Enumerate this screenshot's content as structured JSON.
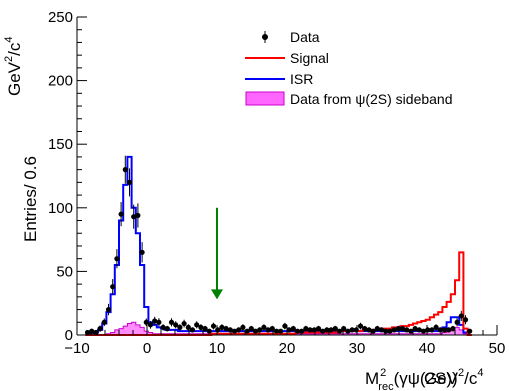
{
  "chart_data": {
    "type": "histogram",
    "xlabel": {
      "main": "M",
      "sup": "2",
      "sub": "rec",
      "rest": "(γψ(2S))",
      "unit_prefix": "GeV",
      "unit_sup1": "2",
      "unit_mid": "/c",
      "unit_sup2": "4"
    },
    "ylabel": {
      "main": "Entries/ 0.6",
      "unit_prefix": "GeV",
      "unit_sup1": "2",
      "unit_mid": "/c",
      "unit_sup2": "4"
    },
    "xlim": [
      -10,
      50
    ],
    "ylim": [
      0,
      250
    ],
    "xticks": [
      -10,
      0,
      10,
      20,
      30,
      40,
      50
    ],
    "yticks": [
      0,
      50,
      100,
      150,
      200,
      250
    ],
    "bin_width": 0.6,
    "legend": {
      "position": "top-right",
      "entries": [
        {
          "label": "Data",
          "style": "marker",
          "color": "#000000"
        },
        {
          "label": "Signal",
          "style": "line",
          "color": "#ff0000"
        },
        {
          "label": "ISR",
          "style": "line",
          "color": "#0000ff"
        },
        {
          "label": "Data from ψ(2S) sideband",
          "style": "fill",
          "color": "#ff00ff"
        }
      ]
    },
    "arrow": {
      "x": 10,
      "y_top": 100,
      "y_bottom": 28,
      "color": "#008000"
    },
    "series": {
      "data": {
        "x": [
          -8.5,
          -7.9,
          -7.3,
          -6.7,
          -6.1,
          -5.5,
          -4.9,
          -4.3,
          -3.7,
          -3.1,
          -2.5,
          -1.9,
          -1.3,
          -0.7,
          -0.1,
          0.5,
          1.1,
          1.7,
          2.3,
          2.9,
          3.5,
          4.1,
          4.7,
          5.3,
          5.9,
          6.5,
          7.1,
          7.7,
          8.3,
          8.9,
          9.5,
          10.1,
          10.7,
          11.3,
          11.9,
          12.5,
          13.1,
          13.7,
          14.3,
          14.9,
          15.5,
          16.1,
          16.7,
          17.3,
          17.9,
          18.5,
          19.1,
          19.7,
          20.3,
          20.9,
          21.5,
          22.1,
          22.7,
          23.3,
          23.9,
          24.5,
          25.1,
          25.7,
          26.3,
          26.9,
          27.5,
          28.1,
          28.7,
          29.3,
          29.9,
          30.5,
          31.1,
          31.7,
          32.3,
          32.9,
          33.5,
          34.1,
          34.7,
          35.3,
          35.9,
          36.5,
          37.1,
          37.7,
          38.3,
          38.9,
          39.5,
          40.1,
          40.7,
          41.3,
          41.9,
          42.5,
          43.1,
          43.7,
          44.3,
          44.9,
          45.5,
          46.1
        ],
        "y": [
          2,
          3,
          2,
          5,
          10,
          20,
          38,
          60,
          95,
          130,
          120,
          93,
          94,
          65,
          10,
          8,
          11,
          10,
          6,
          5,
          10,
          8,
          6,
          9,
          6,
          4,
          8,
          6,
          5,
          3,
          7,
          4,
          6,
          5,
          4,
          3,
          4,
          6,
          3,
          5,
          3,
          4,
          6,
          4,
          5,
          3,
          3,
          7,
          4,
          5,
          3,
          3,
          5,
          4,
          4,
          5,
          3,
          4,
          4,
          5,
          3,
          5,
          3,
          4,
          4,
          7,
          5,
          4,
          3,
          5,
          4,
          3,
          3,
          4,
          5,
          5,
          4,
          3,
          5,
          4,
          3,
          4,
          4,
          6,
          4,
          4,
          4,
          5,
          10,
          15,
          12,
          3
        ],
        "err": [
          1.5,
          2,
          1.5,
          2.5,
          3,
          4.5,
          6,
          7.5,
          9.5,
          11,
          11,
          9.5,
          9.5,
          8,
          3,
          3,
          3.3,
          3.2,
          2.5,
          2.2,
          3.2,
          2.8,
          2.5,
          3,
          2.5,
          2,
          2.8,
          2.5,
          2.2,
          1.7,
          2.6,
          2,
          2.5,
          2.2,
          2,
          1.7,
          2,
          2.5,
          1.7,
          2.2,
          1.7,
          2,
          2.5,
          2,
          2.2,
          1.7,
          1.7,
          2.6,
          2,
          2.2,
          1.7,
          1.7,
          2.2,
          2,
          2,
          2.2,
          1.7,
          2,
          2,
          2.2,
          1.7,
          2.2,
          1.7,
          2,
          2,
          2.6,
          2.2,
          2,
          1.7,
          2.2,
          2,
          1.7,
          1.7,
          2,
          2.2,
          2.2,
          2,
          1.7,
          2.2,
          2,
          1.7,
          2,
          2,
          2.5,
          2,
          2,
          2,
          2.2,
          3.2,
          4,
          3.5,
          1.7
        ]
      },
      "isr": {
        "edges_start": -8.8,
        "values": [
          0,
          1,
          2,
          4,
          9,
          18,
          32,
          55,
          90,
          118,
          140,
          100,
          80,
          55,
          22,
          10,
          8,
          6,
          5,
          4,
          4,
          4,
          3,
          3,
          3,
          3,
          3,
          3,
          3,
          3,
          3,
          3,
          3,
          3,
          3,
          3,
          3,
          3,
          3,
          3,
          3,
          3,
          3,
          3,
          3,
          3,
          3,
          3,
          3,
          3,
          3,
          3,
          3,
          3,
          3,
          3,
          3,
          3,
          3,
          3,
          3,
          3,
          3,
          3,
          3,
          3,
          3,
          3,
          3,
          3,
          3,
          3,
          3,
          3,
          3,
          3,
          3,
          3,
          3,
          3,
          3,
          3,
          3,
          3,
          4,
          6,
          10,
          14,
          14,
          8,
          2,
          0
        ]
      },
      "signal": {
        "edges_start": -8.8,
        "values": [
          0,
          0,
          0,
          0,
          0,
          0,
          0,
          0,
          0,
          0,
          0,
          0,
          0,
          0,
          0,
          0,
          0,
          0,
          0,
          0,
          0,
          0,
          0,
          0,
          0,
          0,
          0,
          0,
          0,
          0,
          1,
          1,
          1,
          1,
          1,
          1,
          1,
          1,
          1,
          1,
          1,
          1,
          1,
          1,
          1,
          1,
          1,
          1,
          1,
          1,
          2,
          2,
          2,
          2,
          2,
          2,
          2,
          2,
          2,
          2,
          3,
          3,
          3,
          3,
          3,
          3,
          4,
          4,
          4,
          4,
          5,
          5,
          5,
          6,
          6,
          7,
          7,
          8,
          9,
          10,
          11,
          12,
          14,
          16,
          18,
          22,
          26,
          32,
          43,
          65,
          5,
          0
        ]
      },
      "sideband": {
        "edges_start": -8.8,
        "values": [
          0,
          0,
          0,
          0,
          0,
          1,
          2,
          4,
          5,
          7,
          9,
          10,
          8,
          6,
          3,
          2,
          1,
          1,
          1,
          1,
          1,
          1,
          1,
          1,
          1,
          1,
          1,
          1,
          1,
          1,
          1,
          1,
          1,
          1,
          1,
          1,
          1,
          1,
          1,
          1,
          1,
          1,
          1,
          1,
          1,
          1,
          1,
          1,
          1,
          1,
          1,
          1,
          1,
          1,
          1,
          1,
          1,
          1,
          1,
          1,
          1,
          1,
          1,
          1,
          1,
          1,
          1,
          1,
          1,
          1,
          1,
          1,
          1,
          1,
          1,
          1,
          1,
          1,
          1,
          1,
          1,
          1,
          1,
          1,
          1,
          2,
          3,
          5,
          6,
          4,
          1,
          0
        ]
      }
    }
  }
}
